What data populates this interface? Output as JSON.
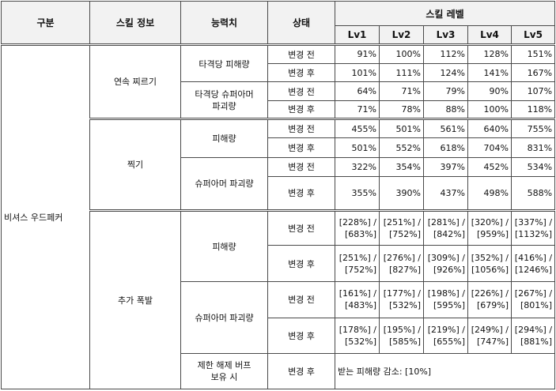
{
  "header": {
    "category": "구분",
    "skill_info": "스킬 정보",
    "stat": "능력치",
    "state": "상태",
    "skill_level": "스킬 레벨",
    "levels": [
      "Lv1",
      "Lv2",
      "Lv3",
      "Lv4",
      "Lv5"
    ]
  },
  "class_name": "비셔스 우드페커",
  "skills": {
    "s1": {
      "name": "연속 찌르기",
      "stat1": "타격당 피해량",
      "stat2_line1": "타격당 슈퍼아머",
      "stat2_line2": "파괴량"
    },
    "s2": {
      "name": "찍기",
      "stat1": "피해량",
      "stat2": "슈퍼아머 파괴량"
    },
    "s3": {
      "name": "추가 폭발",
      "stat1": "피해량",
      "stat2": "슈퍼아머 파괴량",
      "stat3_line1": "제한 해제 버프",
      "stat3_line2": "보유 시",
      "stat3_value": "받는 피해량 감소: [10%]"
    }
  },
  "state": {
    "before": "변경 전",
    "after": "변경 후"
  },
  "rows": {
    "r1": [
      "91%",
      "100%",
      "112%",
      "128%",
      "151%"
    ],
    "r2": [
      "101%",
      "111%",
      "124%",
      "141%",
      "167%"
    ],
    "r3": [
      "64%",
      "71%",
      "79%",
      "90%",
      "107%"
    ],
    "r4": [
      "71%",
      "78%",
      "88%",
      "100%",
      "118%"
    ],
    "r5": [
      "455%",
      "501%",
      "561%",
      "640%",
      "755%"
    ],
    "r6": [
      "501%",
      "552%",
      "618%",
      "704%",
      "831%"
    ],
    "r7": [
      "322%",
      "354%",
      "397%",
      "452%",
      "534%"
    ],
    "r8": [
      "355%",
      "390%",
      "437%",
      "498%",
      "588%"
    ],
    "r9": [
      [
        "[228%] /",
        "[683%]"
      ],
      [
        "[251%] /",
        "[752%]"
      ],
      [
        "[281%] /",
        "[842%]"
      ],
      [
        "[320%] /",
        "[959%]"
      ],
      [
        "[337%] /",
        "[1132%]"
      ]
    ],
    "r10": [
      [
        "[251%] /",
        "[752%]"
      ],
      [
        "[276%] /",
        "[827%]"
      ],
      [
        "[309%] /",
        "[926%]"
      ],
      [
        "[352%] /",
        "[1056%]"
      ],
      [
        "[416%] /",
        "[1246%]"
      ]
    ],
    "r11": [
      [
        "[161%] /",
        "[483%]"
      ],
      [
        "[177%] /",
        "[532%]"
      ],
      [
        "[198%] /",
        "[595%]"
      ],
      [
        "[226%] /",
        "[679%]"
      ],
      [
        "[267%] /",
        "[801%]"
      ]
    ],
    "r12": [
      [
        "[178%] /",
        "[532%]"
      ],
      [
        "[195%] /",
        "[585%]"
      ],
      [
        "[219%] /",
        "[655%]"
      ],
      [
        "[249%] /",
        "[747%]"
      ],
      [
        "[294%] /",
        "[881%]"
      ]
    ]
  }
}
